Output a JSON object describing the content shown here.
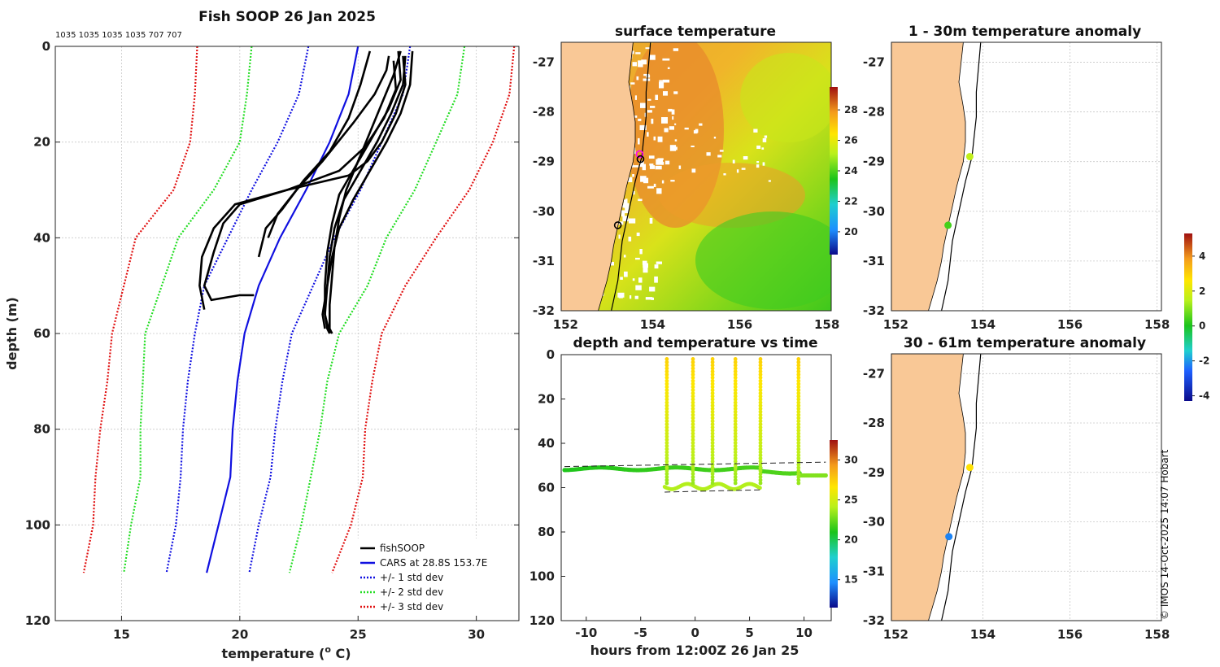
{
  "figure": {
    "title": "Fish SOOP 26 Jan 2025",
    "profile_counts": "1035 1035 1035 1035 707 707",
    "credit": "© IMOS 14-Oct-2025 14:07 Hobart"
  },
  "colors": {
    "fishsoop": "#000000",
    "cars": "#1010e0",
    "std1": "#1010e0",
    "std2": "#22dd22",
    "std3": "#e01010",
    "land": "#f9c896",
    "coast": "#000000"
  },
  "chart_data": [
    {
      "id": "profile",
      "type": "line",
      "title": "Fish SOOP 26 Jan 2025",
      "xlabel": "temperature (",
      "xlabel_sup": "o",
      "xlabel_unit": " C)",
      "ylabel": "depth (m)",
      "xlim": [
        12.2,
        31.8
      ],
      "ylim": [
        120,
        0
      ],
      "xticks": [
        15,
        20,
        25,
        30
      ],
      "yticks": [
        0,
        20,
        40,
        60,
        80,
        100,
        120
      ],
      "grid": true,
      "legend_position": "bottom-right",
      "legend": [
        {
          "label": "fishSOOP",
          "style": "solid",
          "color_key": "fishsoop"
        },
        {
          "label": "CARS at 28.8S 153.7E",
          "style": "solid",
          "color_key": "cars"
        },
        {
          "label": "+/- 1 std dev",
          "style": "dotted",
          "color_key": "std1"
        },
        {
          "label": "+/- 2 std dev",
          "style": "dotted",
          "color_key": "std2"
        },
        {
          "label": "+/- 3 std dev",
          "style": "dotted",
          "color_key": "std3"
        }
      ],
      "depth_levels": [
        0,
        10,
        20,
        30,
        40,
        50,
        60,
        70,
        80,
        90,
        100,
        110
      ],
      "cars_mean": [
        25.0,
        24.6,
        23.8,
        22.8,
        21.7,
        20.8,
        20.2,
        19.9,
        19.7,
        19.6,
        19.1,
        18.6
      ],
      "std_plus1": [
        27.2,
        26.9,
        26.0,
        25.1,
        24.0,
        23.1,
        22.2,
        21.8,
        21.5,
        21.3,
        20.8,
        20.4
      ],
      "std_minus1": [
        22.9,
        22.5,
        21.6,
        20.5,
        19.5,
        18.5,
        18.1,
        17.8,
        17.6,
        17.5,
        17.3,
        16.9
      ],
      "std_plus2": [
        29.5,
        29.2,
        28.3,
        27.4,
        26.2,
        25.4,
        24.2,
        23.7,
        23.4,
        23.0,
        22.6,
        22.1
      ],
      "std_minus2": [
        20.5,
        20.3,
        20.0,
        18.9,
        17.4,
        16.7,
        16.0,
        15.9,
        15.8,
        15.8,
        15.4,
        15.1
      ],
      "std_plus3": [
        31.6,
        31.4,
        30.7,
        29.7,
        28.3,
        27.0,
        26.0,
        25.6,
        25.3,
        25.2,
        24.7,
        23.9
      ],
      "std_minus3": [
        18.2,
        18.1,
        17.9,
        17.2,
        15.6,
        15.1,
        14.6,
        14.4,
        14.1,
        13.9,
        13.8,
        13.4
      ],
      "fishsoop_casts": [
        {
          "temps": [
            26.8,
            26.5,
            26.0,
            25.5,
            25.0,
            24.5,
            24.2,
            24.0,
            23.9,
            23.8,
            23.8,
            23.8,
            23.9
          ],
          "depths": [
            1,
            6,
            12,
            18,
            24,
            30,
            36,
            42,
            48,
            54,
            57,
            59,
            60
          ]
        },
        {
          "temps": [
            27.0,
            26.9,
            26.4,
            25.8,
            25.1,
            24.4,
            24.0,
            23.8,
            23.7,
            23.6,
            23.7,
            23.8
          ],
          "depths": [
            2,
            8,
            14,
            20,
            26,
            32,
            38,
            44,
            50,
            56,
            59,
            60
          ]
        },
        {
          "temps": [
            27.3,
            27.2,
            26.8,
            26.2,
            25.5,
            24.8,
            24.2,
            23.9,
            23.7,
            23.5,
            23.6
          ],
          "depths": [
            1,
            8,
            14,
            20,
            26,
            32,
            38,
            44,
            50,
            56,
            59
          ]
        },
        {
          "temps": [
            26.7,
            26.8,
            26.3,
            25.6,
            24.9,
            24.2,
            23.9,
            23.7,
            23.6,
            23.6,
            23.8
          ],
          "depths": [
            1,
            7,
            13,
            19,
            25,
            31,
            37,
            43,
            50,
            56,
            60
          ]
        },
        {
          "temps": [
            26.5,
            26.6,
            26.1,
            25.3,
            24.2,
            22.0,
            19.8,
            18.9,
            18.4,
            18.3,
            18.5
          ],
          "depths": [
            3,
            9,
            15,
            21,
            26,
            30,
            33,
            38,
            44,
            50,
            55
          ]
        },
        {
          "temps": [
            26.9,
            27.0,
            26.6,
            26.0,
            25.4,
            24.6,
            22.0,
            20.0,
            19.3,
            18.9,
            18.5,
            18.8,
            20.0,
            20.6
          ],
          "depths": [
            2,
            8,
            14,
            20,
            24,
            27,
            30,
            33,
            37,
            43,
            50,
            53,
            52,
            52
          ]
        },
        {
          "temps": [
            26.3,
            26.2,
            25.7,
            24.8,
            23.5,
            22.4,
            21.6,
            21.2
          ],
          "depths": [
            2,
            5,
            10,
            16,
            24,
            30,
            35,
            40
          ]
        },
        {
          "temps": [
            25.5,
            25.1,
            24.6,
            23.8,
            22.7,
            21.8,
            21.1,
            20.8
          ],
          "depths": [
            1,
            8,
            15,
            22,
            28,
            34,
            38,
            44
          ]
        }
      ]
    },
    {
      "id": "surface_temperature_map",
      "type": "heatmap",
      "title": "surface temperature",
      "xlim": [
        151.9,
        158.1
      ],
      "ylim": [
        -32,
        -26.6
      ],
      "xticks": [
        152,
        154,
        156,
        158
      ],
      "yticks": [
        -27,
        -28,
        -29,
        -30,
        -31,
        -32
      ],
      "colorbar_range": [
        18.5,
        29.5
      ],
      "colorbar_ticks": [
        20,
        22,
        24,
        26,
        28
      ],
      "markers": [
        {
          "lon": 153.7,
          "lat": -28.85,
          "style": "magenta-circle"
        },
        {
          "lon": 153.72,
          "lat": -28.95,
          "style": "black-circle"
        },
        {
          "lon": 153.2,
          "lat": -30.28,
          "style": "black-circle"
        }
      ]
    },
    {
      "id": "depth_time",
      "type": "scatter",
      "title": "depth and temperature vs time",
      "xlabel": "hours from 12:00Z 26 Jan 25",
      "xlim": [
        -12.3,
        12.5
      ],
      "ylim": [
        120,
        0
      ],
      "xticks": [
        -10,
        -5,
        0,
        5,
        10
      ],
      "yticks": [
        0,
        20,
        40,
        60,
        80,
        100,
        120
      ],
      "colorbar_range": [
        11.5,
        32.5
      ],
      "colorbar_ticks": [
        15,
        20,
        25,
        30
      ],
      "dashed_levels": [
        {
          "t0": -12.0,
          "t1": 12.0,
          "d0": 50.5,
          "d1": 48.5
        },
        {
          "t0": -2.8,
          "t1": 6.0,
          "d0": 62.0,
          "d1": 61.0
        }
      ],
      "descent_times": [
        -2.6,
        -0.2,
        1.6,
        3.7,
        6.0
      ]
    },
    {
      "id": "anomaly_shallow_map",
      "type": "scatter",
      "title": "1 - 30m temperature anomaly",
      "xlim": [
        151.9,
        158.1
      ],
      "ylim": [
        -32,
        -26.6
      ],
      "xticks": [
        152,
        154,
        156,
        158
      ],
      "yticks": [
        -27,
        -28,
        -29,
        -30,
        -31,
        -32
      ],
      "points": [
        {
          "lon": 153.7,
          "lat": -28.9,
          "anomaly": 1.6
        },
        {
          "lon": 153.2,
          "lat": -30.28,
          "anomaly": 0.4
        }
      ]
    },
    {
      "id": "anomaly_deep_map",
      "type": "scatter",
      "title": "30 - 61m temperature anomaly",
      "xlim": [
        151.9,
        158.1
      ],
      "ylim": [
        -32,
        -26.6
      ],
      "xticks": [
        152,
        154,
        156,
        158
      ],
      "yticks": [
        -27,
        -28,
        -29,
        -30,
        -31,
        -32
      ],
      "points": [
        {
          "lon": 153.7,
          "lat": -28.9,
          "anomaly": 2.7
        },
        {
          "lon": 153.22,
          "lat": -30.3,
          "anomaly": -3.0
        }
      ]
    },
    {
      "id": "anomaly_colorbar",
      "type": "colorbar",
      "range": [
        -4.3,
        5.3
      ],
      "ticks": [
        -4,
        -2,
        0,
        2,
        4
      ]
    }
  ]
}
